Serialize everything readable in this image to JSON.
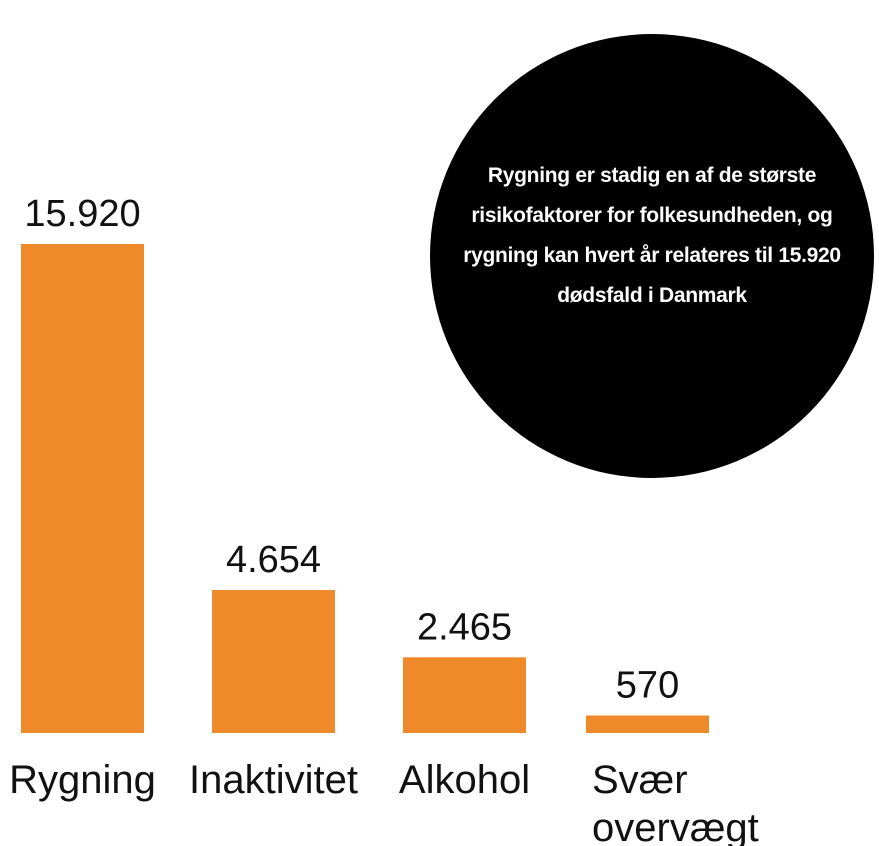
{
  "chart_data": {
    "type": "bar",
    "categories": [
      "Rygning",
      "Inaktivitet",
      "Alkohol",
      [
        "Svær",
        "overvægt"
      ]
    ],
    "values": [
      15920,
      4654,
      2465,
      570
    ],
    "value_labels": [
      "15.920",
      "4.654",
      "2.465",
      "570"
    ],
    "ylim": [
      0,
      15920
    ],
    "grid": false,
    "title": "",
    "xlabel": "",
    "ylabel": ""
  },
  "colors": {
    "bar": "#ee8a2a",
    "callout_bg": "#000000",
    "text": "#111111",
    "callout_text": "#ffffff"
  },
  "callout": {
    "text": "Rygning er stadig en af de største risikofaktorer for folkesundheden, og rygning kan hvert år relateres til 15.920 dødsfald i Danmark"
  }
}
